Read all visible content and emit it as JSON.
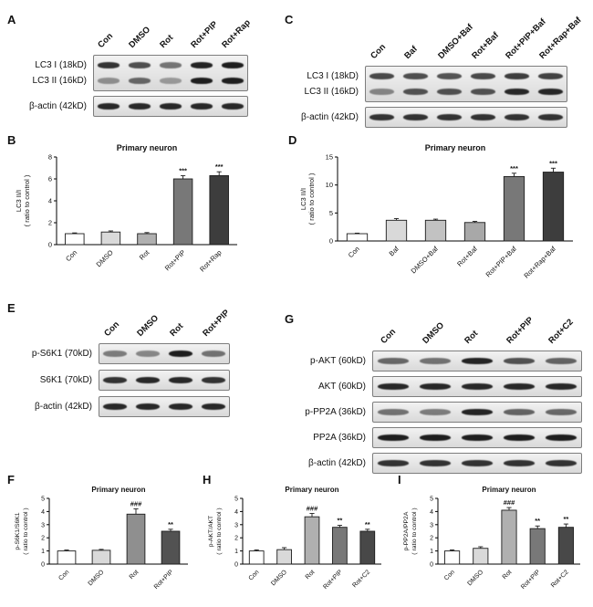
{
  "panel_labels": {
    "A": "A",
    "B": "B",
    "C": "C",
    "D": "D",
    "E": "E",
    "F": "F",
    "G": "G",
    "H": "H",
    "I": "I"
  },
  "blots": [
    {
      "id": "A",
      "lanes": [
        "Con",
        "DMSO",
        "Rot",
        "Rot+PIP",
        "Rot+Rap"
      ],
      "groups": [
        {
          "rows": [
            {
              "label": "LC3 I (18kD)",
              "bands": [
                0.85,
                0.72,
                0.55,
                0.92,
                0.95
              ]
            },
            {
              "label": "LC3 II (16kD)",
              "bands": [
                0.4,
                0.6,
                0.35,
                0.95,
                0.95
              ]
            }
          ]
        },
        {
          "rows": [
            {
              "label": "β-actin (42kD)",
              "bands": [
                0.9,
                0.9,
                0.9,
                0.9,
                0.9
              ]
            }
          ]
        }
      ]
    },
    {
      "id": "C",
      "lanes": [
        "Con",
        "Baf",
        "DMSO+Baf",
        "Rot+Baf",
        "Rot+PIP+Baf",
        "Rot+Rap+Baf"
      ],
      "groups": [
        {
          "rows": [
            {
              "label": "LC3 I (18kD)",
              "bands": [
                0.75,
                0.72,
                0.7,
                0.75,
                0.8,
                0.78
              ]
            },
            {
              "label": "LC3 II (16kD)",
              "bands": [
                0.45,
                0.7,
                0.7,
                0.7,
                0.9,
                0.9
              ]
            }
          ]
        },
        {
          "rows": [
            {
              "label": "β-actin (42kD)",
              "bands": [
                0.85,
                0.85,
                0.85,
                0.85,
                0.85,
                0.85
              ]
            }
          ]
        }
      ]
    },
    {
      "id": "E",
      "lanes": [
        "Con",
        "DMSO",
        "Rot",
        "Rot+PIP"
      ],
      "groups": [
        {
          "rows": [
            {
              "label": "p-S6K1 (70kD)",
              "bands": [
                0.5,
                0.45,
                0.95,
                0.55
              ]
            }
          ]
        },
        {
          "rows": [
            {
              "label": "S6K1 (70kD)",
              "bands": [
                0.85,
                0.9,
                0.9,
                0.85
              ]
            }
          ]
        },
        {
          "rows": [
            {
              "label": "β-actin (42kD)",
              "bands": [
                0.9,
                0.9,
                0.9,
                0.9
              ]
            }
          ]
        }
      ]
    },
    {
      "id": "G",
      "lanes": [
        "Con",
        "DMSO",
        "Rot",
        "Rot+PIP",
        "Rot+C2"
      ],
      "groups": [
        {
          "rows": [
            {
              "label": "p-AKT (60kD)",
              "bands": [
                0.6,
                0.55,
                0.92,
                0.7,
                0.62
              ]
            }
          ]
        },
        {
          "rows": [
            {
              "label": "AKT (60kD)",
              "bands": [
                0.9,
                0.9,
                0.9,
                0.9,
                0.9
              ]
            }
          ]
        },
        {
          "rows": [
            {
              "label": "p-PP2A (36kD)",
              "bands": [
                0.55,
                0.5,
                0.92,
                0.62,
                0.6
              ]
            }
          ]
        },
        {
          "rows": [
            {
              "label": "PP2A (36kD)",
              "bands": [
                0.95,
                0.95,
                0.95,
                0.95,
                0.95
              ]
            }
          ]
        },
        {
          "rows": [
            {
              "label": "β-actin (42kD)",
              "bands": [
                0.85,
                0.85,
                0.85,
                0.85,
                0.85
              ]
            }
          ]
        }
      ]
    }
  ],
  "chart_data": [
    {
      "id": "B",
      "type": "bar",
      "title": "Primary neuron",
      "ylabel_lines": [
        "LC3 II/I",
        "( ratio to control )"
      ],
      "ylim": [
        0,
        8
      ],
      "yticks": [
        0,
        2,
        4,
        6,
        8
      ],
      "categories": [
        "Con",
        "DMSO",
        "Rot",
        "Rot+PIP",
        "Rot+Rap"
      ],
      "values": [
        1.0,
        1.15,
        1.0,
        6.0,
        6.3
      ],
      "errors": [
        0.07,
        0.1,
        0.1,
        0.3,
        0.35
      ],
      "sig": [
        "",
        "",
        "",
        "***",
        "***"
      ],
      "colors": [
        "#ffffff",
        "#d9d9d9",
        "#b0b0b0",
        "#787878",
        "#3d3d3d"
      ]
    },
    {
      "id": "D",
      "type": "bar",
      "title": "Primary neuron",
      "ylabel_lines": [
        "LC3 II/I",
        "( ratio to control )"
      ],
      "ylim": [
        0,
        15
      ],
      "yticks": [
        0,
        5,
        10,
        15
      ],
      "categories": [
        "Con",
        "Baf",
        "DMSO+Baf",
        "Rot+Baf",
        "Rot+PIP+Baf",
        "Rot+Rap+Baf"
      ],
      "values": [
        1.3,
        3.7,
        3.7,
        3.3,
        11.5,
        12.3
      ],
      "errors": [
        0.1,
        0.3,
        0.2,
        0.2,
        0.6,
        0.7
      ],
      "sig": [
        "",
        "",
        "",
        "",
        "***",
        "***"
      ],
      "colors": [
        "#ffffff",
        "#d9d9d9",
        "#c2c2c2",
        "#a8a8a8",
        "#787878",
        "#3d3d3d"
      ]
    },
    {
      "id": "F",
      "type": "bar",
      "title": "Primary neuron",
      "ylabel_lines": [
        "p-S6K1/S6K1",
        "( ratio to control )"
      ],
      "ylim": [
        0,
        5
      ],
      "yticks": [
        0,
        1,
        2,
        3,
        4,
        5
      ],
      "categories": [
        "Con",
        "DMSO",
        "Rot",
        "Rot+PIP"
      ],
      "values": [
        1.0,
        1.05,
        3.8,
        2.5
      ],
      "errors": [
        0.07,
        0.07,
        0.4,
        0.15
      ],
      "sig": [
        "",
        "",
        "###",
        "**"
      ],
      "colors": [
        "#ffffff",
        "#d9d9d9",
        "#8f8f8f",
        "#525252"
      ]
    },
    {
      "id": "H",
      "type": "bar",
      "title": "Primary neuron",
      "ylabel_lines": [
        "p-AKT/AKT",
        "( ratio to control )"
      ],
      "ylim": [
        0,
        5
      ],
      "yticks": [
        0,
        1,
        2,
        3,
        4,
        5
      ],
      "categories": [
        "Con",
        "DMSO",
        "Rot",
        "Rot+PIP",
        "Rot+C2"
      ],
      "values": [
        1.0,
        1.1,
        3.6,
        2.8,
        2.5
      ],
      "errors": [
        0.08,
        0.15,
        0.25,
        0.15,
        0.15
      ],
      "sig": [
        "",
        "",
        "###",
        "**",
        "**"
      ],
      "colors": [
        "#ffffff",
        "#d9d9d9",
        "#b0b0b0",
        "#787878",
        "#484848"
      ]
    },
    {
      "id": "I",
      "type": "bar",
      "title": "Primary neuron",
      "ylabel_lines": [
        "p-PP2A/PP2A",
        "( ratio to control )"
      ],
      "ylim": [
        0,
        5
      ],
      "yticks": [
        0,
        1,
        2,
        3,
        4,
        5
      ],
      "categories": [
        "Con",
        "DMSO",
        "Rot",
        "Rot+PIP",
        "Rot+C2"
      ],
      "values": [
        1.0,
        1.2,
        4.1,
        2.7,
        2.8
      ],
      "errors": [
        0.08,
        0.12,
        0.2,
        0.2,
        0.25
      ],
      "sig": [
        "",
        "",
        "###",
        "**",
        "**"
      ],
      "colors": [
        "#ffffff",
        "#d9d9d9",
        "#b0b0b0",
        "#787878",
        "#484848"
      ]
    }
  ]
}
